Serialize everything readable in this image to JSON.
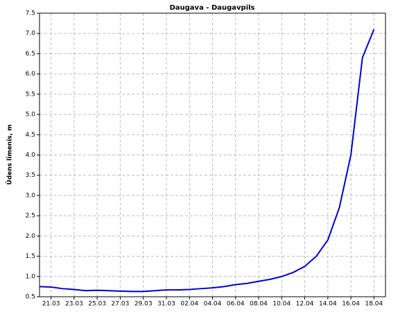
{
  "chart_data": {
    "type": "line",
    "title": "Daugava - Daugavpils",
    "y_label": "Ūdens līmenis, m",
    "x": [
      "20.03",
      "21.03",
      "22.03",
      "23.03",
      "24.03",
      "25.03",
      "26.03",
      "27.03",
      "28.03",
      "29.03",
      "30.03",
      "31.03",
      "01.04",
      "02.04",
      "03.04",
      "04.04",
      "05.04",
      "06.04",
      "07.04",
      "08.04",
      "09.04",
      "10.04",
      "11.04",
      "12.04",
      "13.04",
      "14.04",
      "15.04",
      "16.04",
      "17.04",
      "18.04"
    ],
    "series": [
      {
        "name": "Daugavpils",
        "color": "#0000cc",
        "values": [
          0.75,
          0.74,
          0.7,
          0.68,
          0.65,
          0.66,
          0.65,
          0.64,
          0.63,
          0.63,
          0.65,
          0.67,
          0.67,
          0.68,
          0.7,
          0.72,
          0.75,
          0.8,
          0.83,
          0.88,
          0.93,
          1.0,
          1.1,
          1.25,
          1.5,
          1.9,
          2.7,
          4.0,
          6.4,
          7.1
        ]
      }
    ],
    "xlim": [
      "20.03",
      "19.04"
    ],
    "xticks": [
      "21.03",
      "23.03",
      "25.03",
      "27.03",
      "29.03",
      "31.03",
      "02.04",
      "04.04",
      "06.04",
      "08.04",
      "10.04",
      "12.04",
      "14.04",
      "16.04",
      "18.04"
    ],
    "ylim": [
      0.5,
      7.5
    ],
    "yticks": [
      0.5,
      {
        "value": 1,
        "label": "1.0"
      },
      1.5,
      {
        "value": 2,
        "label": "2.0"
      },
      2.5,
      {
        "value": 3,
        "label": "3.0"
      },
      3.5,
      {
        "value": 4,
        "label": "4.0"
      },
      4.5,
      {
        "value": 5,
        "label": "5.0"
      },
      5.5,
      {
        "value": 6,
        "label": "6.0"
      },
      6.5,
      {
        "value": 7,
        "label": "7.0"
      },
      7.5
    ],
    "grid": true
  }
}
